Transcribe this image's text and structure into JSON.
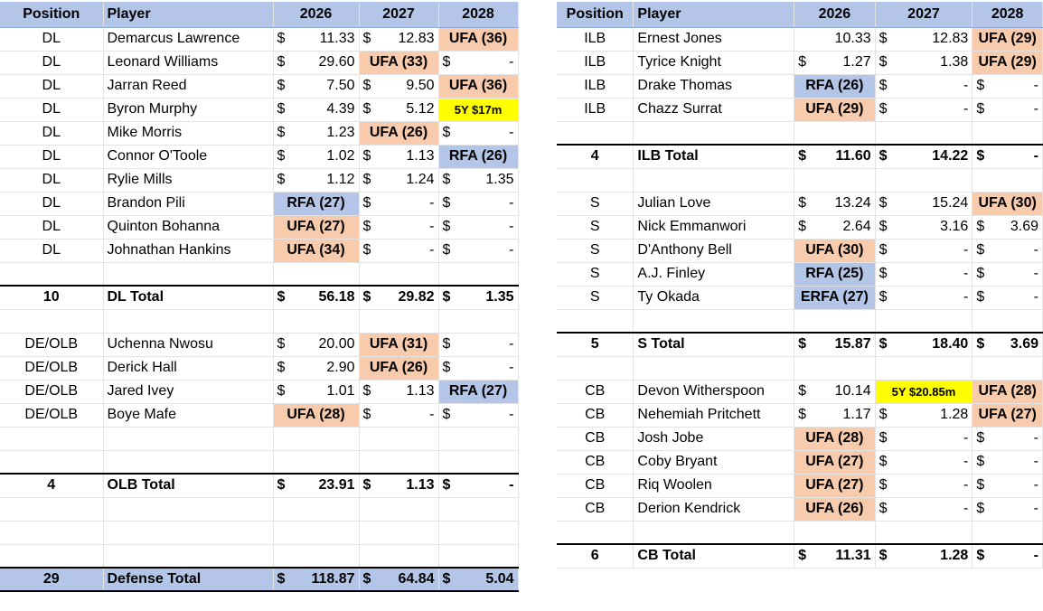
{
  "left": {
    "headers": [
      "Position",
      "Player",
      "2026",
      "2027",
      "2028"
    ],
    "rows": [
      {
        "type": "player",
        "pos": "DL",
        "name": "Demarcus Lawrence",
        "y26": "$ | 11.33",
        "y27": "$ | 12.83",
        "y28": "UFA (36)"
      },
      {
        "type": "player",
        "pos": "DL",
        "name": "Leonard Williams",
        "y26": "$ | 29.60",
        "y27": "UFA (33)",
        "y28": "$ | -"
      },
      {
        "type": "player",
        "pos": "DL",
        "name": "Jarran Reed",
        "y26": "$ | 7.50",
        "y27": "$ | 9.50",
        "y28": "UFA (36)"
      },
      {
        "type": "player",
        "pos": "DL",
        "name": "Byron Murphy",
        "y26": "$ | 4.39",
        "y27": "$ | 5.12",
        "y28": "5Y $17m"
      },
      {
        "type": "player",
        "pos": "DL",
        "name": "Mike Morris",
        "y26": "$ | 1.23",
        "y27": "UFA (26)",
        "y28": "$ | -"
      },
      {
        "type": "player",
        "pos": "DL",
        "name": "Connor O'Toole",
        "y26": "$ | 1.02",
        "y27": "$ | 1.13",
        "y28": "RFA (26)"
      },
      {
        "type": "player",
        "pos": "DL",
        "name": "Rylie Mills",
        "y26": "$ | 1.12",
        "y27": "$ | 1.24",
        "y28": "$ | 1.35"
      },
      {
        "type": "player",
        "pos": "DL",
        "name": "Brandon Pili",
        "y26": "RFA (27)",
        "y27": "$ | -",
        "y28": "$ | -"
      },
      {
        "type": "player",
        "pos": "DL",
        "name": "Quinton Bohanna",
        "y26": "UFA (27)",
        "y27": "$ | -",
        "y28": "$ | -"
      },
      {
        "type": "player",
        "pos": "DL",
        "name": "Johnathan Hankins",
        "y26": "UFA (34)",
        "y27": "$ | -",
        "y28": "$ | -"
      },
      {
        "type": "blank"
      },
      {
        "type": "total",
        "pos": "10",
        "name": "DL Total",
        "y26": "$ | 56.18",
        "y27": "$ | 29.82",
        "y28": "$ | 1.35"
      },
      {
        "type": "blank"
      },
      {
        "type": "player",
        "pos": "DE/OLB",
        "name": "Uchenna Nwosu",
        "y26": "$ | 20.00",
        "y27": "UFA (31)",
        "y28": "$ | -"
      },
      {
        "type": "player",
        "pos": "DE/OLB",
        "name": "Derick Hall",
        "y26": "$ | 2.90",
        "y27": "UFA (26)",
        "y28": "$ | -"
      },
      {
        "type": "player",
        "pos": "DE/OLB",
        "name": "Jared Ivey",
        "y26": "$ | 1.01",
        "y27": "$ | 1.13",
        "y28": "RFA (27)"
      },
      {
        "type": "player",
        "pos": "DE/OLB",
        "name": "Boye Mafe",
        "y26": "UFA (28)",
        "y27": "$ | -",
        "y28": "$ | -"
      },
      {
        "type": "blank"
      },
      {
        "type": "blank"
      },
      {
        "type": "total",
        "pos": "4",
        "name": "OLB Total",
        "y26": "$ | 23.91",
        "y27": "$ | 1.13",
        "y28": "$ | -"
      },
      {
        "type": "blank"
      },
      {
        "type": "blank"
      },
      {
        "type": "blank"
      },
      {
        "type": "grand",
        "pos": "29",
        "name": "Defense Total",
        "y26": "$ | 118.87",
        "y27": "$ | 64.84",
        "y28": "$ | 5.04"
      }
    ]
  },
  "right": {
    "headers": [
      "Position",
      "Player",
      "2026",
      "2027",
      "2028"
    ],
    "rows": [
      {
        "type": "player",
        "pos": "ILB",
        "name": "Ernest Jones",
        "y26": "| 10.33",
        "y27": "$ | 12.83",
        "y28": "UFA (29)"
      },
      {
        "type": "player",
        "pos": "ILB",
        "name": "Tyrice Knight",
        "y26": "$ | 1.27",
        "y27": "$ | 1.38",
        "y28": "UFA (29)"
      },
      {
        "type": "player",
        "pos": "ILB",
        "name": "Drake Thomas",
        "y26": "RFA (26)",
        "y27": "$ | -",
        "y28": "$ | -"
      },
      {
        "type": "player",
        "pos": "ILB",
        "name": "Chazz Surrat",
        "y26": "UFA (29)",
        "y27": "$ | -",
        "y28": "$ | -"
      },
      {
        "type": "blank"
      },
      {
        "type": "total",
        "pos": "4",
        "name": "ILB Total",
        "y26": "$ | 11.60",
        "y27": "$ | 14.22",
        "y28": "$ | -"
      },
      {
        "type": "blank"
      },
      {
        "type": "player",
        "pos": "S",
        "name": "Julian Love",
        "y26": "$ | 13.24",
        "y27": "$ | 15.24",
        "y28": "UFA (30)"
      },
      {
        "type": "player",
        "pos": "S",
        "name": "Nick Emmanwori",
        "y26": "$ | 2.64",
        "y27": "$ | 3.16",
        "y28": "$ | 3.69"
      },
      {
        "type": "player",
        "pos": "S",
        "name": "D'Anthony Bell",
        "y26": "UFA (30)",
        "y27": "$ | -",
        "y28": "$ | -"
      },
      {
        "type": "player",
        "pos": "S",
        "name": "A.J. Finley",
        "y26": "RFA (25)",
        "y27": "$ | -",
        "y28": "$ | -"
      },
      {
        "type": "player",
        "pos": "S",
        "name": "Ty Okada",
        "y26": "ERFA (27)",
        "y27": "$ | -",
        "y28": "$ | -"
      },
      {
        "type": "blank"
      },
      {
        "type": "total",
        "pos": "5",
        "name": "S Total",
        "y26": "$ | 15.87",
        "y27": "$ | 18.40",
        "y28": "$ | 3.69"
      },
      {
        "type": "blank"
      },
      {
        "type": "player",
        "pos": "CB",
        "name": "Devon Witherspoon",
        "y26": "$ | 10.14",
        "y27": "5Y $20.85m",
        "y28": "UFA (28)"
      },
      {
        "type": "player",
        "pos": "CB",
        "name": "Nehemiah Pritchett",
        "y26": "$ | 1.17",
        "y27": "$ | 1.28",
        "y28": "UFA (27)"
      },
      {
        "type": "player",
        "pos": "CB",
        "name": "Josh Jobe",
        "y26": "UFA (28)",
        "y27": "$ | -",
        "y28": "$ | -"
      },
      {
        "type": "player",
        "pos": "CB",
        "name": "Coby Bryant",
        "y26": "UFA (27)",
        "y27": "$ | -",
        "y28": "$ | -"
      },
      {
        "type": "player",
        "pos": "CB",
        "name": "Riq Woolen",
        "y26": "UFA (27)",
        "y27": "$ | -",
        "y28": "$ | -"
      },
      {
        "type": "player",
        "pos": "CB",
        "name": "Derion Kendrick",
        "y26": "UFA (26)",
        "y27": "$ | -",
        "y28": "$ | -"
      },
      {
        "type": "blank"
      },
      {
        "type": "total",
        "pos": "6",
        "name": "CB Total",
        "y26": "$ | 11.31",
        "y27": "$ | 1.28",
        "y28": "$ | -"
      }
    ]
  },
  "colors": {
    "header": "#b4c6e7",
    "ufa": "#f8cbad",
    "rfa": "#b4c6e7",
    "extension": "#ffff00"
  }
}
